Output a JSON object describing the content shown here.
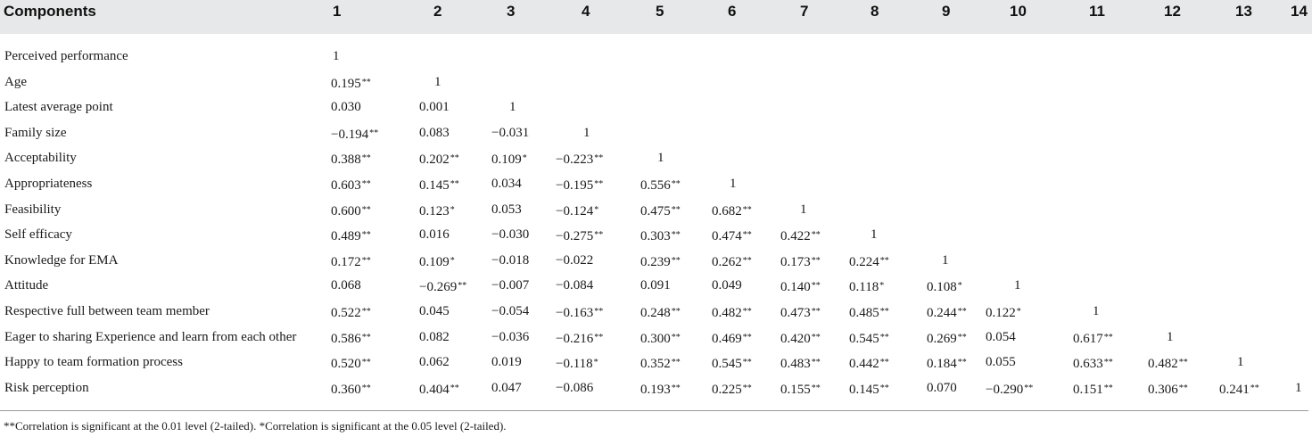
{
  "table": {
    "header": [
      "Components",
      "1",
      "2",
      "3",
      "4",
      "5",
      "6",
      "7",
      "8",
      "9",
      "10",
      "11",
      "12",
      "13",
      "14"
    ],
    "rows": [
      {
        "label": "Perceived performance",
        "cells": [
          [
            "1",
            ""
          ]
        ]
      },
      {
        "label": "Age",
        "cells": [
          [
            "0.195",
            "**"
          ],
          [
            "1",
            ""
          ]
        ]
      },
      {
        "label": "Latest average point",
        "cells": [
          [
            "0.030",
            ""
          ],
          [
            "0.001",
            ""
          ],
          [
            "1",
            ""
          ]
        ]
      },
      {
        "label": "Family size",
        "cells": [
          [
            "−0.194",
            "**"
          ],
          [
            "0.083",
            ""
          ],
          [
            "−0.031",
            ""
          ],
          [
            "1",
            ""
          ]
        ]
      },
      {
        "label": "Acceptability",
        "cells": [
          [
            "0.388",
            "**"
          ],
          [
            "0.202",
            "**"
          ],
          [
            "0.109",
            "*"
          ],
          [
            "−0.223",
            "**"
          ],
          [
            "1",
            ""
          ]
        ]
      },
      {
        "label": "Appropriateness",
        "cells": [
          [
            "0.603",
            "**"
          ],
          [
            "0.145",
            "**"
          ],
          [
            "0.034",
            ""
          ],
          [
            "−0.195",
            "**"
          ],
          [
            "0.556",
            "**"
          ],
          [
            "1",
            ""
          ]
        ]
      },
      {
        "label": "Feasibility",
        "cells": [
          [
            "0.600",
            "**"
          ],
          [
            "0.123",
            "*"
          ],
          [
            "0.053",
            ""
          ],
          [
            "−0.124",
            "*"
          ],
          [
            "0.475",
            "**"
          ],
          [
            "0.682",
            "**"
          ],
          [
            "1",
            ""
          ]
        ]
      },
      {
        "label": "Self efficacy",
        "cells": [
          [
            "0.489",
            "**"
          ],
          [
            "0.016",
            ""
          ],
          [
            "−0.030",
            ""
          ],
          [
            "−0.275",
            "**"
          ],
          [
            "0.303",
            "**"
          ],
          [
            "0.474",
            "**"
          ],
          [
            "0.422",
            "**"
          ],
          [
            "1",
            ""
          ]
        ]
      },
      {
        "label": "Knowledge for EMA",
        "cells": [
          [
            "0.172",
            "**"
          ],
          [
            "0.109",
            "*"
          ],
          [
            "−0.018",
            ""
          ],
          [
            "−0.022",
            ""
          ],
          [
            "0.239",
            "**"
          ],
          [
            "0.262",
            "**"
          ],
          [
            "0.173",
            "**"
          ],
          [
            "0.224",
            "**"
          ],
          [
            "1",
            ""
          ]
        ]
      },
      {
        "label": "Attitude",
        "cells": [
          [
            "0.068",
            ""
          ],
          [
            "−0.269",
            "**"
          ],
          [
            "−0.007",
            ""
          ],
          [
            "−0.084",
            ""
          ],
          [
            "0.091",
            ""
          ],
          [
            "0.049",
            ""
          ],
          [
            "0.140",
            "**"
          ],
          [
            "0.118",
            "*"
          ],
          [
            "0.108",
            "*"
          ],
          [
            "1",
            ""
          ]
        ]
      },
      {
        "label": "Respective full between team member",
        "cells": [
          [
            "0.522",
            "**"
          ],
          [
            "0.045",
            ""
          ],
          [
            "−0.054",
            ""
          ],
          [
            "−0.163",
            "**"
          ],
          [
            "0.248",
            "**"
          ],
          [
            "0.482",
            "**"
          ],
          [
            "0.473",
            "**"
          ],
          [
            "0.485",
            "**"
          ],
          [
            "0.244",
            "**"
          ],
          [
            "0.122",
            "*"
          ],
          [
            "1",
            ""
          ]
        ]
      },
      {
        "label": "Eager to sharing Experience and learn from each other",
        "cells": [
          [
            "0.586",
            "**"
          ],
          [
            "0.082",
            ""
          ],
          [
            "−0.036",
            ""
          ],
          [
            "−0.216",
            "**"
          ],
          [
            "0.300",
            "**"
          ],
          [
            "0.469",
            "**"
          ],
          [
            "0.420",
            "**"
          ],
          [
            "0.545",
            "**"
          ],
          [
            "0.269",
            "**"
          ],
          [
            "0.054",
            ""
          ],
          [
            "0.617",
            "**"
          ],
          [
            "1",
            ""
          ]
        ]
      },
      {
        "label": "Happy to team formation process",
        "cells": [
          [
            "0.520",
            "**"
          ],
          [
            "0.062",
            ""
          ],
          [
            "0.019",
            ""
          ],
          [
            "−0.118",
            "*"
          ],
          [
            "0.352",
            "**"
          ],
          [
            "0.545",
            "**"
          ],
          [
            "0.483",
            "**"
          ],
          [
            "0.442",
            "**"
          ],
          [
            "0.184",
            "**"
          ],
          [
            "0.055",
            ""
          ],
          [
            "0.633",
            "**"
          ],
          [
            "0.482",
            "**"
          ],
          [
            "1",
            ""
          ]
        ]
      },
      {
        "label": "Risk perception",
        "cells": [
          [
            "0.360",
            "**"
          ],
          [
            "0.404",
            "**"
          ],
          [
            "0.047",
            ""
          ],
          [
            "−0.086",
            ""
          ],
          [
            "0.193",
            "**"
          ],
          [
            "0.225",
            "**"
          ],
          [
            "0.155",
            "**"
          ],
          [
            "0.145",
            "**"
          ],
          [
            "0.070",
            ""
          ],
          [
            "−0.290",
            "**"
          ],
          [
            "0.151",
            "**"
          ],
          [
            "0.306",
            "**"
          ],
          [
            "0.241",
            "**"
          ],
          [
            "1",
            ""
          ]
        ]
      }
    ],
    "footnote": "**Correlation is significant at the 0.01 level (2-tailed). *Correlation is significant at the 0.05 level (2-tailed)."
  }
}
